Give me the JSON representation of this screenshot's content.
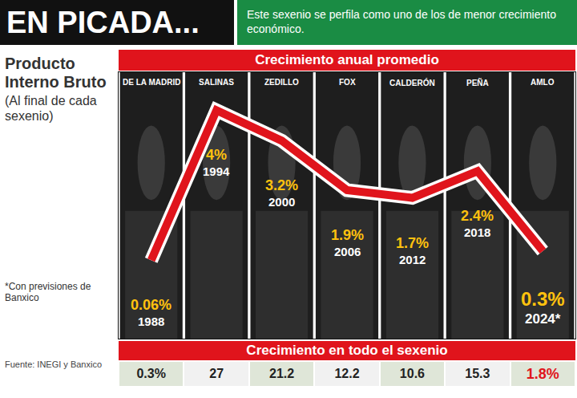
{
  "chart_data": {
    "type": "line",
    "title": "EN PICADA...",
    "subtitle": "Este sexenio se perfila como uno de los de menor crecimiento económico.",
    "ylabel": "Producto Interno Bruto",
    "ylabel_note": "(Al final de cada sexenio)",
    "header": "Crecimiento anual promedio",
    "note": "*Con previsiones de Banxico",
    "source": "Fuente: INEGI y Banxico",
    "categories": [
      "DE LA MADRID",
      "SALINAS",
      "ZEDILLO",
      "FOX",
      "CALDERÓN",
      "PEÑA",
      "AMLO"
    ],
    "values": [
      0.06,
      4,
      3.2,
      1.9,
      1.7,
      2.4,
      0.3
    ],
    "value_labels": [
      "0.06%",
      "4%",
      "3.2%",
      "1.9%",
      "1.7%",
      "2.4%",
      "0.3%"
    ],
    "years": [
      "1988",
      "1994",
      "2000",
      "2006",
      "2012",
      "2018",
      "2024*"
    ],
    "color": "#e0141c",
    "ylim": [
      -2,
      5
    ],
    "data_labels": true,
    "tick_labels": false,
    "grid": false,
    "sexenio_growth": {
      "title": "Crecimiento en todo el sexenio",
      "values": [
        0.3,
        27,
        21.2,
        12.2,
        10.6,
        15.3,
        1.8
      ],
      "value_labels": [
        "0.3%",
        "27",
        "21.2",
        "12.2",
        "10.6",
        "15.3",
        "1.8%"
      ]
    }
  }
}
